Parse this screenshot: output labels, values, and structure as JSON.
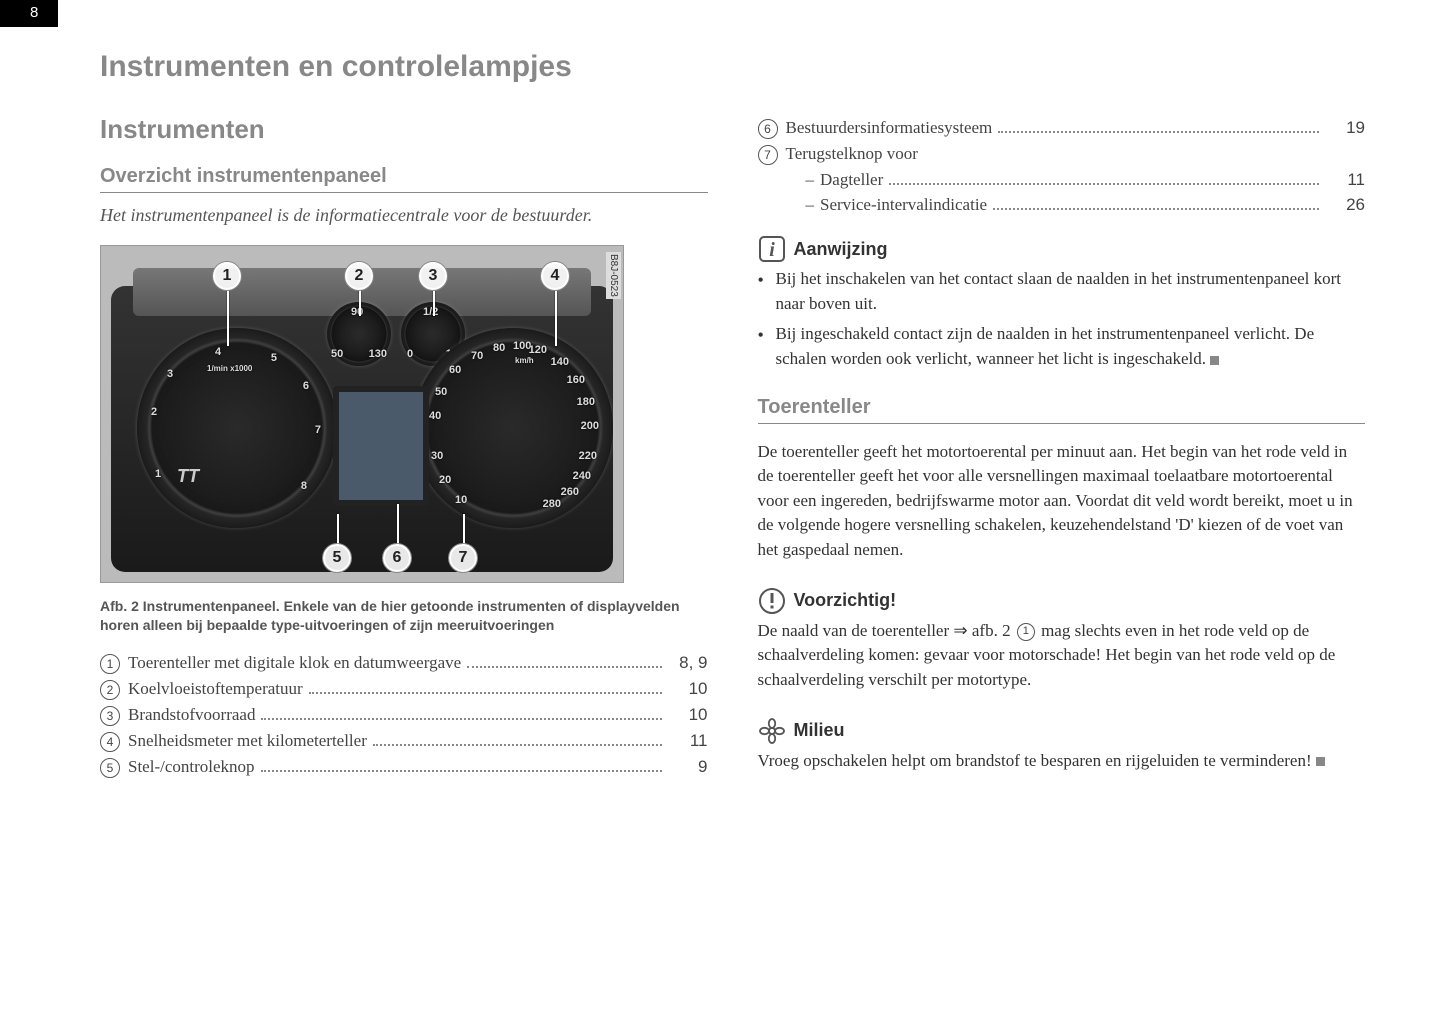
{
  "page_number": "8",
  "title": "Instrumenten en controlelampjes",
  "left": {
    "section": "Instrumenten",
    "subsection": "Overzicht instrumentenpaneel",
    "intro": "Het instrumentenpaneel is de informatiecentrale voor de bestuurder.",
    "figure": {
      "side_label": "B8J-0523",
      "callouts_top": [
        "1",
        "2",
        "3",
        "4"
      ],
      "callouts_bottom": [
        "5",
        "6",
        "7"
      ],
      "tt_badge": "TT",
      "speedo_labels": [
        "10",
        "20",
        "30",
        "40",
        "50",
        "60",
        "70",
        "80",
        "100",
        "120",
        "140",
        "160",
        "180",
        "200",
        "220",
        "240",
        "260",
        "280"
      ],
      "speedo_unit": "km/h",
      "tach_labels": [
        "1",
        "2",
        "3",
        "4",
        "5",
        "6",
        "7",
        "8"
      ],
      "tach_unit": "1/min x1000",
      "small1_labels": [
        "50",
        "90",
        "130"
      ],
      "small2_labels": [
        "0",
        "1/2",
        "1/1"
      ]
    },
    "caption": "Afb. 2   Instrumentenpaneel. Enkele van de hier getoonde instrumenten of displayvelden horen alleen bij bepaalde type-uitvoeringen of zijn meeruitvoeringen",
    "index": [
      {
        "num": "1",
        "label": "Toerenteller met digitale klok en datumweergave",
        "page": "8, 9"
      },
      {
        "num": "2",
        "label": "Koelvloeistoftemperatuur",
        "page": "10"
      },
      {
        "num": "3",
        "label": "Brandstofvoorraad",
        "page": "10"
      },
      {
        "num": "4",
        "label": "Snelheidsmeter met kilometerteller",
        "page": "11"
      },
      {
        "num": "5",
        "label": "Stel-/controleknop",
        "page": "9"
      }
    ]
  },
  "right": {
    "index_cont": [
      {
        "num": "6",
        "label": "Bestuurdersinformatiesysteem",
        "page": "19"
      },
      {
        "num": "7",
        "label": "Terugstelknop voor",
        "page": "",
        "sub": [
          {
            "dash": "–",
            "label": "Dagteller",
            "page": "11"
          },
          {
            "dash": "–",
            "label": "Service-intervalindicatie",
            "page": "26"
          }
        ]
      }
    ],
    "note1": {
      "title": "Aanwijzing",
      "bullets": [
        "Bij het inschakelen van het contact slaan de naalden in het instrumentenpaneel kort naar boven uit.",
        "Bij ingeschakeld contact zijn de naalden in het instrumentenpaneel verlicht. De schalen worden ook verlicht, wanneer het licht is ingeschakeld."
      ]
    },
    "subsection2": "Toerenteller",
    "body2": "De toerenteller geeft het motortoerental per minuut aan. Het begin van het rode veld in de toerenteller geeft het voor alle versnellingen maximaal toelaatbare motortoerental voor een ingereden, bedrijfswarme motor aan. Voordat dit veld wordt bereikt, moet u in de volgende hogere versnelling schakelen, keuzehendelstand 'D' kiezen of de voet van het gaspedaal nemen.",
    "note2": {
      "title": "Voorzichtig!",
      "body_pre": "De naald van de toerenteller ⇒ afb. 2 ",
      "ref": "1",
      "body_post": " mag slechts even in het rode veld op de schaalverdeling komen: gevaar voor motorschade! Het begin van het rode veld op de schaalverdeling verschilt per motortype."
    },
    "note3": {
      "title": "Milieu",
      "body": "Vroeg opschakelen helpt om brandstof te besparen en rijgeluiden te verminderen!"
    }
  },
  "colors": {
    "heading": "#888888",
    "text": "#333333",
    "caption": "#555555"
  }
}
